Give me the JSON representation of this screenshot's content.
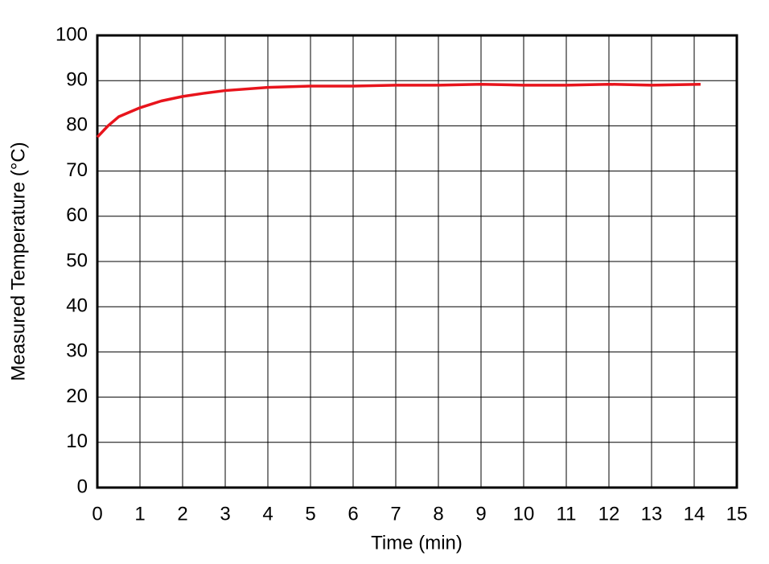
{
  "chart_data": {
    "type": "line",
    "x_label": "Time (min)",
    "y_label": "Measured Temperature (°C)",
    "x": [
      0,
      0.25,
      0.5,
      1,
      1.5,
      2,
      2.5,
      3,
      4,
      5,
      6,
      7,
      8,
      9,
      10,
      11,
      12,
      13,
      14.15
    ],
    "series": [
      {
        "name": "Measured Temperature",
        "color": "#e8141c",
        "values": [
          77.5,
          80,
          82,
          84,
          85.5,
          86.5,
          87.2,
          87.8,
          88.5,
          88.8,
          88.8,
          89,
          89,
          89.2,
          89,
          89,
          89.2,
          89,
          89.2
        ]
      }
    ],
    "xlim": [
      0,
      15
    ],
    "xticks": [
      0,
      1,
      2,
      3,
      4,
      5,
      6,
      7,
      8,
      9,
      10,
      11,
      12,
      13,
      14,
      15
    ],
    "ylim": [
      0,
      100
    ],
    "yticks": [
      0,
      10,
      20,
      30,
      40,
      50,
      60,
      70,
      80,
      90,
      100
    ],
    "grid": true
  }
}
